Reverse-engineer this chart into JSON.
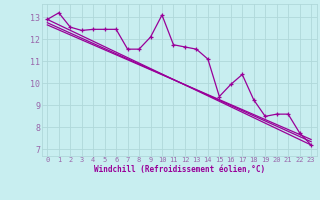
{
  "xlabel": "Windchill (Refroidissement éolien,°C)",
  "background_color": "#c8eef0",
  "grid_color": "#b0d8da",
  "line_color": "#990099",
  "axis_color": "#9966aa",
  "xlim": [
    -0.5,
    23.5
  ],
  "ylim": [
    6.7,
    13.6
  ],
  "yticks": [
    7,
    8,
    9,
    10,
    11,
    12,
    13
  ],
  "xticks": [
    0,
    1,
    2,
    3,
    4,
    5,
    6,
    7,
    8,
    9,
    10,
    11,
    12,
    13,
    14,
    15,
    16,
    17,
    18,
    19,
    20,
    21,
    22,
    23
  ],
  "series1_x": [
    0,
    1,
    2,
    3,
    4,
    5,
    6,
    7,
    8,
    9,
    10,
    11,
    12,
    13,
    14,
    15,
    16,
    17,
    18,
    19,
    20,
    21,
    22,
    23
  ],
  "series1_y": [
    12.9,
    13.2,
    12.55,
    12.4,
    12.45,
    12.45,
    12.45,
    11.55,
    11.55,
    12.1,
    13.1,
    11.75,
    11.65,
    11.55,
    11.1,
    9.4,
    9.95,
    10.4,
    9.25,
    8.5,
    8.6,
    8.6,
    7.75,
    7.2
  ],
  "trend1_x": [
    0,
    23
  ],
  "trend1_y": [
    12.9,
    7.2
  ],
  "trend2_x": [
    0,
    23
  ],
  "trend2_y": [
    12.75,
    7.35
  ],
  "trend3_x": [
    0,
    23
  ],
  "trend3_y": [
    12.65,
    7.45
  ]
}
